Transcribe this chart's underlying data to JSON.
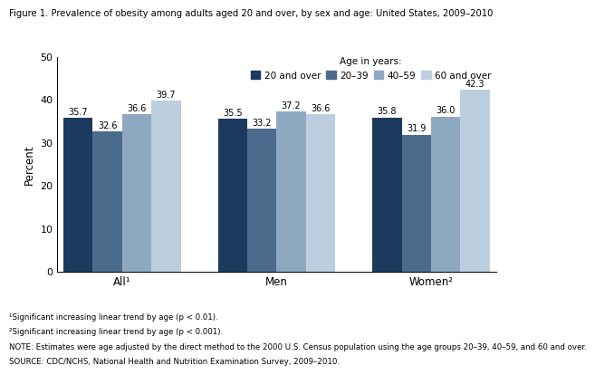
{
  "title": "Figure 1. Prevalence of obesity among adults aged 20 and over, by sex and age: United States, 2009–2010",
  "groups": [
    "All¹",
    "Men",
    "Women²"
  ],
  "series_labels": [
    "20 and over",
    "20–39",
    "40–59",
    "60 and over"
  ],
  "values": {
    "All¹": [
      35.7,
      32.6,
      36.6,
      39.7
    ],
    "Men": [
      35.5,
      33.2,
      37.2,
      36.6
    ],
    "Women²": [
      35.8,
      31.9,
      36.0,
      42.3
    ]
  },
  "colors": [
    "#1b3a5e",
    "#4a6b8c",
    "#8fa8c2",
    "#bccfdf"
  ],
  "ylabel": "Percent",
  "ylim": [
    0,
    50
  ],
  "yticks": [
    0,
    10,
    20,
    30,
    40,
    50
  ],
  "footnote1": "¹Significant increasing linear trend by age (p < 0.01).",
  "footnote2": "²Significant increasing linear trend by age (p < 0.001).",
  "note": "NOTE: Estimates were age adjusted by the direct method to the 2000 U.S. Census population using the age groups 20–39, 40–59, and 60 and over.",
  "source": "SOURCE: CDC/NCHS, National Health and Nutrition Examination Survey, 2009–2010.",
  "bar_width": 0.19,
  "group_positions": [
    0.42,
    1.42,
    2.42
  ]
}
